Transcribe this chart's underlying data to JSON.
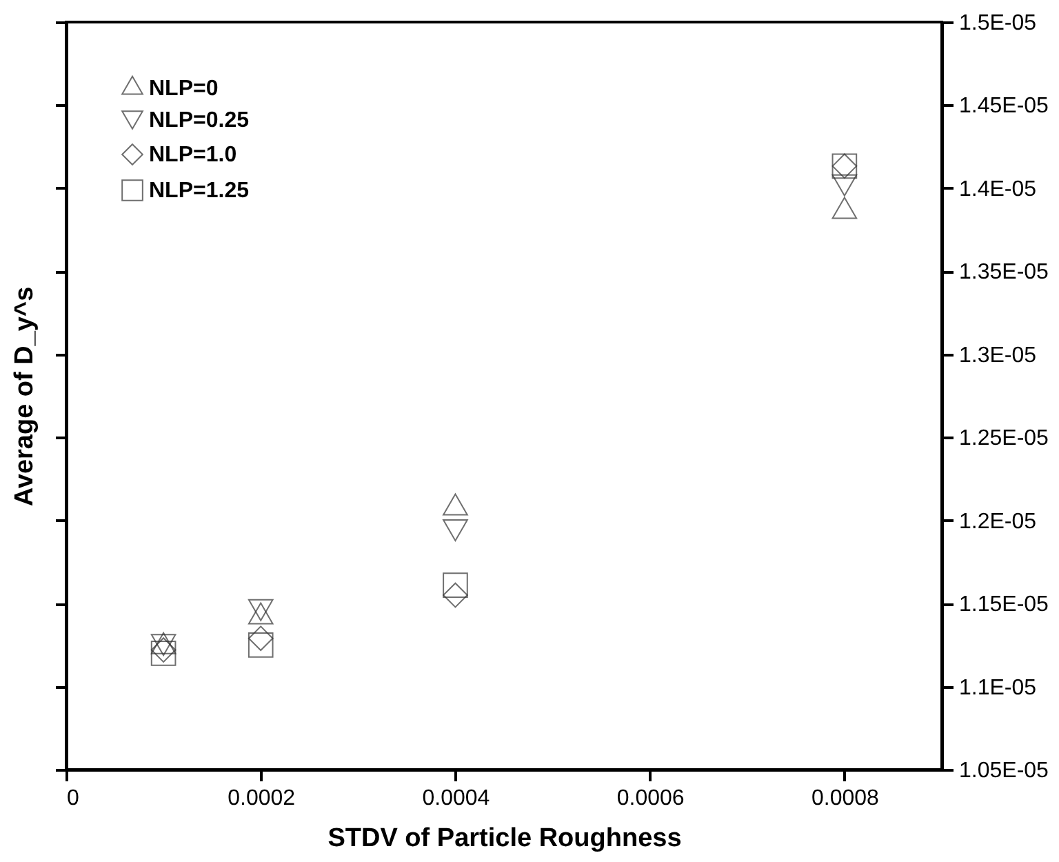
{
  "chart_data": {
    "type": "scatter",
    "xlabel": "STDV of Particle Roughness",
    "ylabel": "Average of D_y^s",
    "x": [
      0.0001,
      0.0002,
      0.0004,
      0.0008
    ],
    "series": [
      {
        "name": "NLP=0",
        "color": "#333333",
        "marker": "triangle",
        "values": [
          1.124e-05,
          1.142e-05,
          1.2075e-05,
          1.386e-05
        ]
      },
      {
        "name": "NLP=0.25",
        "color": "#333333",
        "marker": "triangle-down",
        "values": [
          1.125e-05,
          1.146e-05,
          1.194e-05,
          1.4017e-05
        ]
      },
      {
        "name": "NLP=1.0",
        "color": "#333333",
        "marker": "diamond",
        "values": [
          1.122e-05,
          1.129e-05,
          1.155e-05,
          1.4133e-05
        ]
      },
      {
        "name": "NLP=1.25",
        "color": "#333333",
        "marker": "square",
        "values": [
          1.12e-05,
          1.125e-05,
          1.161e-05,
          1.4133e-05
        ]
      }
    ],
    "xlim": [
      0,
      0.0009
    ],
    "xticks": [
      0,
      0.0002,
      0.0004,
      0.0006,
      0.0008
    ],
    "ylim": [
      1.05e-05,
      1.5e-05
    ],
    "yticks": [
      {
        "value": 1.05e-05,
        "label": "1.05E-05"
      },
      {
        "value": 1.1e-05,
        "label": "1.1E-05"
      },
      {
        "value": 1.15e-05,
        "label": "1.15E-05"
      },
      {
        "value": 1.2e-05,
        "label": "1.2E-05"
      },
      {
        "value": 1.25e-05,
        "label": "1.25E-05"
      },
      {
        "value": 1.3e-05,
        "label": "1.3E-05"
      },
      {
        "value": 1.35e-05,
        "label": "1.35E-05"
      },
      {
        "value": 1.4e-05,
        "label": "1.4E-05"
      },
      {
        "value": 1.45e-05,
        "label": "1.45E-05"
      },
      {
        "value": 1.5e-05,
        "label": "1.5E-05"
      }
    ],
    "legend": "top left",
    "grid": false
  }
}
